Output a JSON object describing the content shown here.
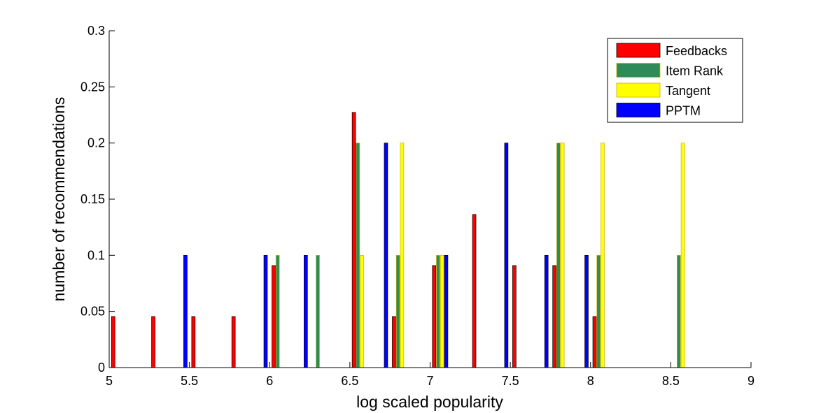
{
  "chart_data": {
    "type": "bar",
    "xlabel": "log scaled popularity",
    "ylabel": "number of recommendations",
    "xlim": [
      5,
      9
    ],
    "ylim": [
      0,
      0.3
    ],
    "x_ticks": [
      "5",
      "5.5",
      "6",
      "6.5",
      "7",
      "7.5",
      "8",
      "8.5",
      "9"
    ],
    "y_ticks": [
      "0",
      "0.05",
      "0.1",
      "0.15",
      "0.2",
      "0.25",
      "0.3"
    ],
    "legend_position": "top-right",
    "grid": false,
    "bin_centers": [
      5.0625,
      5.1875,
      5.3125,
      5.4375,
      5.5625,
      5.6875,
      5.8125,
      5.9375,
      6.0625,
      6.1875,
      6.3125,
      6.4375,
      6.5625,
      6.6875,
      6.8125,
      6.9375,
      7.0625,
      7.1875,
      7.3125,
      7.4375,
      7.5625,
      7.6875,
      7.8125,
      7.9375,
      8.0625,
      8.1875,
      8.3125,
      8.4375,
      8.5625,
      8.6875,
      8.8125,
      8.9375
    ],
    "series": [
      {
        "name": "Feedbacks",
        "color": "#ff0000",
        "values": [
          0.0455,
          0,
          0.0455,
          0,
          0.0455,
          0,
          0.0455,
          0,
          0.0909,
          0,
          0,
          0,
          0.2273,
          0,
          0.0455,
          0,
          0.0909,
          0,
          0.1364,
          0,
          0.0909,
          0,
          0.0909,
          0,
          0.0455,
          0,
          0,
          0,
          0,
          0,
          0,
          0
        ]
      },
      {
        "name": "Item Rank",
        "color": "#2e8b57",
        "values": [
          0,
          0,
          0,
          0,
          0,
          0,
          0,
          0,
          0.1,
          0,
          0.1,
          0,
          0.2,
          0,
          0.1,
          0,
          0.1,
          0,
          0,
          0,
          0,
          0,
          0.2,
          0,
          0.1,
          0,
          0,
          0,
          0.1,
          0,
          0,
          0
        ]
      },
      {
        "name": "Tangent",
        "color": "#ffff00",
        "values": [
          0,
          0,
          0,
          0,
          0,
          0,
          0,
          0,
          0,
          0,
          0,
          0,
          0.1,
          0,
          0.2,
          0,
          0.1,
          0,
          0,
          0,
          0,
          0,
          0.2,
          0,
          0.2,
          0,
          0,
          0,
          0.2,
          0,
          0,
          0
        ]
      },
      {
        "name": "PPTM",
        "color": "#0000ff",
        "values": [
          0,
          0,
          0,
          0.1,
          0,
          0,
          0,
          0.1,
          0,
          0.1,
          0,
          0,
          0,
          0.2,
          0,
          0,
          0.1,
          0,
          0,
          0.2,
          0,
          0.1,
          0,
          0.1,
          0,
          0,
          0,
          0,
          0,
          0,
          0,
          0
        ]
      }
    ]
  }
}
